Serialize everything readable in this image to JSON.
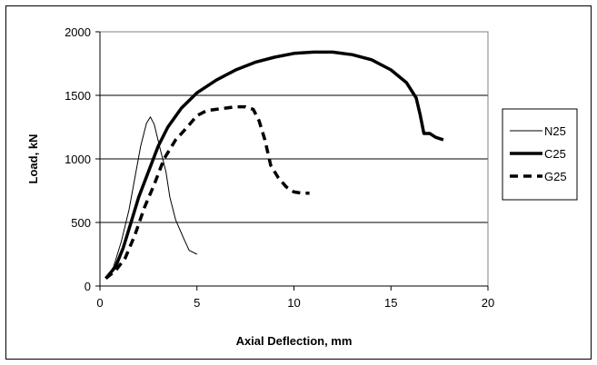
{
  "chart_data": {
    "type": "line",
    "title": "",
    "xlabel": "Axial Deflection, mm",
    "ylabel": "Load, kN",
    "xlim": [
      0,
      20
    ],
    "ylim": [
      0,
      2000
    ],
    "x_ticks": [
      "0",
      "5",
      "10",
      "15",
      "20"
    ],
    "y_ticks": [
      "0",
      "500",
      "1000",
      "1500",
      "2000"
    ],
    "grid": "horizontal",
    "legend_position": "right",
    "series": [
      {
        "name": "N25",
        "style": "thin-solid",
        "color": "#000000",
        "points": [
          [
            0.3,
            60
          ],
          [
            0.7,
            150
          ],
          [
            1.1,
            350
          ],
          [
            1.5,
            600
          ],
          [
            1.8,
            850
          ],
          [
            2.1,
            1100
          ],
          [
            2.4,
            1280
          ],
          [
            2.6,
            1330
          ],
          [
            2.8,
            1270
          ],
          [
            3.1,
            1080
          ],
          [
            3.4,
            900
          ],
          [
            3.6,
            700
          ],
          [
            3.9,
            520
          ],
          [
            4.3,
            380
          ],
          [
            4.6,
            280
          ],
          [
            5.0,
            250
          ]
        ]
      },
      {
        "name": "C25",
        "style": "thick-solid",
        "color": "#000000",
        "points": [
          [
            0.3,
            60
          ],
          [
            0.8,
            150
          ],
          [
            1.2,
            300
          ],
          [
            1.6,
            500
          ],
          [
            2.0,
            700
          ],
          [
            2.5,
            900
          ],
          [
            3.0,
            1100
          ],
          [
            3.5,
            1250
          ],
          [
            4.2,
            1400
          ],
          [
            5.0,
            1520
          ],
          [
            6.0,
            1620
          ],
          [
            7.0,
            1700
          ],
          [
            8.0,
            1760
          ],
          [
            9.0,
            1800
          ],
          [
            10.0,
            1830
          ],
          [
            11.0,
            1840
          ],
          [
            12.0,
            1840
          ],
          [
            13.0,
            1820
          ],
          [
            14.0,
            1780
          ],
          [
            15.0,
            1700
          ],
          [
            15.8,
            1600
          ],
          [
            16.3,
            1480
          ],
          [
            16.5,
            1350
          ],
          [
            16.7,
            1200
          ],
          [
            17.0,
            1200
          ],
          [
            17.3,
            1170
          ],
          [
            17.7,
            1150
          ]
        ]
      },
      {
        "name": "G25",
        "style": "dashed",
        "color": "#000000",
        "points": [
          [
            0.3,
            60
          ],
          [
            0.8,
            120
          ],
          [
            1.3,
            220
          ],
          [
            1.8,
            400
          ],
          [
            2.3,
            620
          ],
          [
            2.8,
            800
          ],
          [
            3.3,
            1000
          ],
          [
            3.9,
            1150
          ],
          [
            4.5,
            1250
          ],
          [
            5.0,
            1340
          ],
          [
            5.5,
            1380
          ],
          [
            6.0,
            1390
          ],
          [
            6.5,
            1400
          ],
          [
            7.0,
            1410
          ],
          [
            7.5,
            1410
          ],
          [
            7.9,
            1390
          ],
          [
            8.2,
            1300
          ],
          [
            8.5,
            1150
          ],
          [
            8.8,
            950
          ],
          [
            9.2,
            850
          ],
          [
            9.6,
            780
          ],
          [
            10.0,
            740
          ],
          [
            10.4,
            730
          ],
          [
            10.8,
            730
          ]
        ]
      }
    ]
  }
}
